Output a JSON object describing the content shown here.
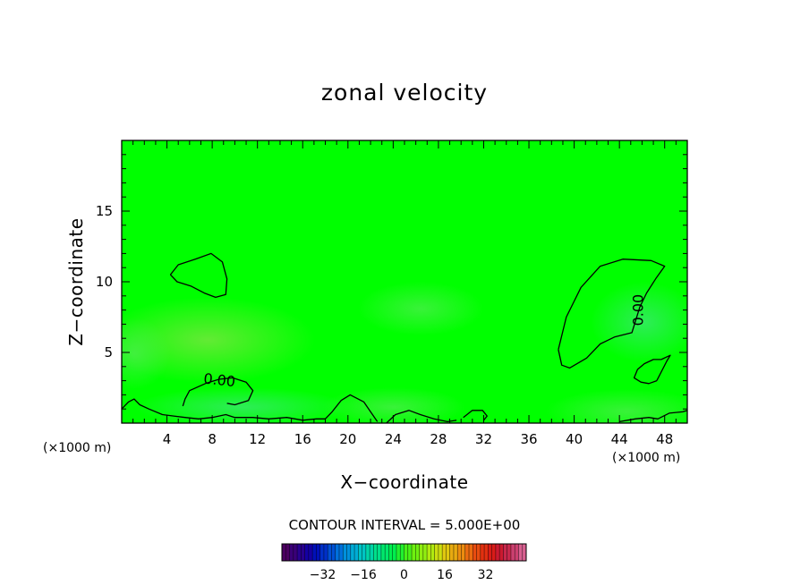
{
  "chart_data": {
    "type": "heatmap",
    "title": "zonal velocity",
    "xlabel": "X−coordinate",
    "ylabel": "Z−coordinate",
    "x_unit_left": "(×1000 m)",
    "x_unit_right": "(×1000 m)",
    "xlim": [
      0,
      50
    ],
    "ylim": [
      0,
      20
    ],
    "x_ticks": [
      4,
      8,
      12,
      16,
      20,
      24,
      28,
      32,
      36,
      40,
      44,
      48
    ],
    "y_ticks": [
      5,
      10,
      15
    ],
    "field_value_range": [
      -3,
      3
    ],
    "contour_level": 0.0,
    "contour_labels": [
      {
        "text": "0.00",
        "x": 8.6,
        "z": 2.7
      },
      {
        "text": "0.00",
        "x": 46.1,
        "z": 8.0
      }
    ],
    "contours": [
      [
        [
          4.3,
          10.5
        ],
        [
          5.0,
          11.2
        ],
        [
          6.5,
          11.6
        ],
        [
          7.9,
          12.0
        ],
        [
          8.9,
          11.4
        ],
        [
          9.3,
          10.2
        ],
        [
          9.2,
          9.1
        ],
        [
          8.3,
          8.9
        ],
        [
          7.3,
          9.2
        ],
        [
          6.1,
          9.7
        ],
        [
          4.9,
          10.0
        ],
        [
          4.3,
          10.5
        ]
      ],
      [
        [
          38.6,
          5.2
        ],
        [
          39.3,
          7.5
        ],
        [
          40.6,
          9.6
        ],
        [
          42.3,
          11.1
        ],
        [
          44.3,
          11.6
        ],
        [
          46.8,
          11.5
        ],
        [
          48.0,
          11.1
        ],
        [
          47.2,
          10.2
        ],
        [
          46.4,
          9.2
        ],
        [
          45.8,
          8.2
        ],
        [
          45.1,
          6.4
        ],
        [
          43.6,
          6.1
        ],
        [
          42.3,
          5.6
        ],
        [
          41.1,
          4.6
        ],
        [
          39.6,
          3.9
        ],
        [
          38.9,
          4.1
        ],
        [
          38.6,
          5.2
        ]
      ],
      [
        [
          47.3,
          3.0
        ],
        [
          48.2,
          4.4
        ],
        [
          48.5,
          4.8
        ],
        [
          47.7,
          4.5
        ],
        [
          47.0,
          4.5
        ],
        [
          46.2,
          4.2
        ],
        [
          45.6,
          3.8
        ],
        [
          45.3,
          3.2
        ],
        [
          45.9,
          2.9
        ],
        [
          46.6,
          2.8
        ],
        [
          47.3,
          3.0
        ]
      ],
      [
        [
          5.4,
          1.2
        ],
        [
          5.6,
          1.7
        ],
        [
          6.0,
          2.3
        ],
        [
          7.4,
          2.8
        ],
        [
          8.6,
          3.1
        ],
        [
          9.8,
          3.2
        ],
        [
          11.0,
          2.9
        ],
        [
          11.6,
          2.3
        ],
        [
          11.2,
          1.6
        ],
        [
          10.0,
          1.3
        ],
        [
          9.3,
          1.4
        ]
      ],
      [
        [
          0.0,
          1.0
        ],
        [
          0.6,
          1.5
        ],
        [
          1.1,
          1.7
        ],
        [
          1.6,
          1.3
        ],
        [
          2.4,
          1.0
        ],
        [
          3.6,
          0.6
        ],
        [
          4.6,
          0.5
        ],
        [
          5.6,
          0.4
        ],
        [
          6.8,
          0.3
        ],
        [
          8.0,
          0.4
        ],
        [
          9.2,
          0.6
        ],
        [
          10.0,
          0.4
        ],
        [
          11.6,
          0.4
        ],
        [
          13.0,
          0.3
        ],
        [
          14.6,
          0.4
        ],
        [
          16.0,
          0.2
        ],
        [
          17.2,
          0.3
        ],
        [
          18.0,
          0.3
        ],
        [
          18.6,
          0.8
        ],
        [
          19.4,
          1.6
        ],
        [
          20.2,
          2.0
        ],
        [
          21.4,
          1.5
        ],
        [
          22.0,
          0.8
        ],
        [
          22.6,
          0.1
        ]
      ],
      [
        [
          23.4,
          0.0
        ],
        [
          24.2,
          0.6
        ],
        [
          25.4,
          0.9
        ],
        [
          26.4,
          0.6
        ],
        [
          27.6,
          0.3
        ],
        [
          28.8,
          0.1
        ],
        [
          29.6,
          0.2
        ]
      ],
      [
        [
          30.2,
          0.4
        ],
        [
          31.0,
          0.9
        ],
        [
          31.9,
          0.9
        ],
        [
          32.3,
          0.5
        ],
        [
          32.0,
          0.2
        ]
      ],
      [
        [
          44.0,
          0.1
        ],
        [
          45.4,
          0.3
        ],
        [
          46.6,
          0.4
        ],
        [
          47.4,
          0.3
        ],
        [
          48.4,
          0.7
        ],
        [
          49.6,
          0.8
        ],
        [
          50.0,
          0.9
        ]
      ]
    ],
    "colorbar": {
      "title": "CONTOUR INTERVAL =  5.000E+00",
      "tick_labels": [
        "−32",
        "−16",
        "0",
        "16",
        "32"
      ],
      "tick_values": [
        -32,
        -16,
        0,
        16,
        32
      ],
      "range": [
        -48,
        48
      ],
      "colors": [
        "#4b0060",
        "#3a0078",
        "#28008e",
        "#1400a4",
        "#0010b8",
        "#0030c8",
        "#0050d4",
        "#0070dc",
        "#0090dc",
        "#00acd6",
        "#00c4c4",
        "#00d4a8",
        "#00e08a",
        "#00e86c",
        "#00ee4e",
        "#20f030",
        "#48f018",
        "#6ef010",
        "#90ee10",
        "#b0ea10",
        "#ccde10",
        "#e0c810",
        "#e8aa10",
        "#ec8c10",
        "#ec6c10",
        "#e84c10",
        "#e23010",
        "#d81c18",
        "#cc1a30",
        "#c8284c",
        "#cc4070",
        "#d86090"
      ]
    }
  }
}
